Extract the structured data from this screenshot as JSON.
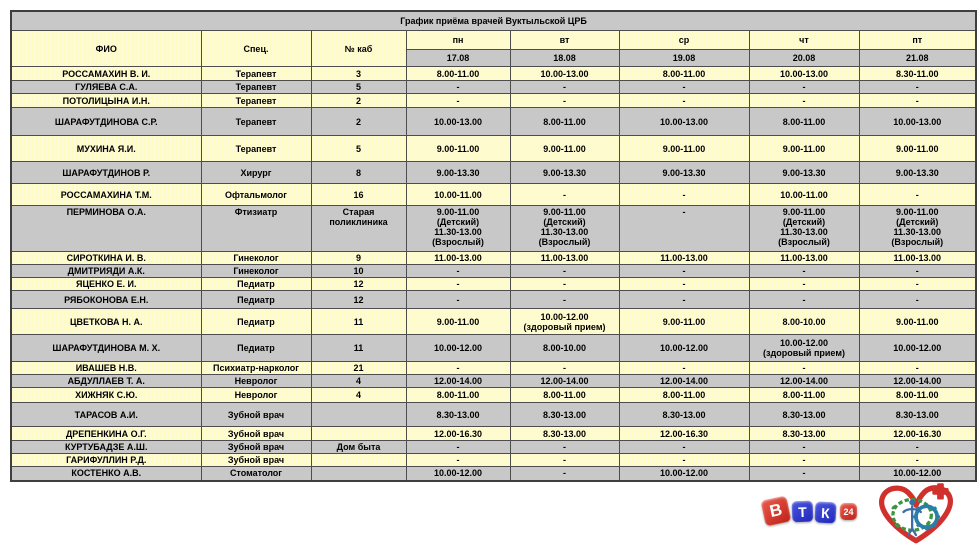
{
  "page": {
    "title_row": "График приёма врачей Вуктыльской ЦРБ"
  },
  "table": {
    "headers": {
      "fio": "ФИО",
      "spec": "Спец.",
      "room": "№ каб"
    },
    "days": [
      "пн",
      "вт",
      "ср",
      "чт",
      "пт"
    ],
    "dates": [
      "17.08",
      "18.08",
      "19.08",
      "20.08",
      "21.08"
    ],
    "rows": [
      {
        "name": "РОССАМАХИН В. И.",
        "spec": "Терапевт",
        "room": "3",
        "times": [
          "8.00-11.00",
          "10.00-13.00",
          "8.00-11.00",
          "10.00-13.00",
          "8.30-11.00"
        ]
      },
      {
        "name": "ГУЛЯЕВА С.А.",
        "spec": "Терапевт",
        "room": "5",
        "times": [
          "-",
          "-",
          "-",
          "-",
          "-"
        ]
      },
      {
        "name": "ПОТОЛИЦЫНА И.Н.",
        "spec": "Терапевт",
        "room": "2",
        "times": [
          "-",
          "-",
          "-",
          "-",
          "-"
        ]
      },
      {
        "name": "ШАРАФУТДИНОВА С.Р.",
        "spec": "Терапевт",
        "room": "2",
        "times": [
          "10.00-13.00",
          "8.00-11.00",
          "10.00-13.00",
          "8.00-11.00",
          "10.00-13.00"
        ]
      },
      {
        "name": "МУХИНА Я.И.",
        "spec": "Терапевт",
        "room": "5",
        "times": [
          "9.00-11.00",
          "9.00-11.00",
          "9.00-11.00",
          "9.00-11.00",
          "9.00-11.00"
        ]
      },
      {
        "name": "ШАРАФУТДИНОВ Р.",
        "spec": "Хирург",
        "room": "8",
        "times": [
          "9.00-13.30",
          "9.00-13.30",
          "9.00-13.30",
          "9.00-13.30",
          "9.00-13.30"
        ]
      },
      {
        "name": "РОССАМАХИНА Т.М.",
        "spec": "Офтальмолог",
        "room": "16",
        "times": [
          "10.00-11.00",
          "-",
          "-",
          "10.00-11.00",
          "-"
        ]
      },
      {
        "name": "ПЕРМИНОВА О.А.",
        "spec": "Фтизиатр",
        "room": "Старая\nполиклиника",
        "times": [
          "9.00-11.00\n(Детский)\n11.30-13.00\n(Взрослый)",
          "9.00-11.00\n(Детский)\n11.30-13.00\n(Взрослый)",
          "-",
          "9.00-11.00\n(Детский)\n11.30-13.00\n(Взрослый)",
          "9.00-11.00\n(Детский)\n11.30-13.00\n(Взрослый)"
        ]
      },
      {
        "name": "СИРОТКИНА И. В.",
        "spec": "Гинеколог",
        "room": "9",
        "times": [
          "11.00-13.00",
          "11.00-13.00",
          "11.00-13.00",
          "11.00-13.00",
          "11.00-13.00"
        ]
      },
      {
        "name": "ДМИТРИЯДИ А.К.",
        "spec": "Гинеколог",
        "room": "10",
        "times": [
          "-",
          "-",
          "-",
          "-",
          "-"
        ]
      },
      {
        "name": "ЯЦЕНКО Е. И.",
        "spec": "Педиатр",
        "room": "12",
        "times": [
          "-",
          "-",
          "-",
          "-",
          "-"
        ]
      },
      {
        "name": "РЯБОКОНОВА Е.Н.",
        "spec": "Педиатр",
        "room": "12",
        "times": [
          "-",
          "-",
          "-",
          "-",
          "-"
        ]
      },
      {
        "name": "ЦВЕТКОВА Н. А.",
        "spec": "Педиатр",
        "room": "11",
        "times": [
          "9.00-11.00",
          "10.00-12.00\n(здоровый прием)",
          "9.00-11.00",
          "8.00-10.00",
          "9.00-11.00"
        ]
      },
      {
        "name": "ШАРАФУТДИНОВА М. Х.",
        "spec": "Педиатр",
        "room": "11",
        "times": [
          "10.00-12.00",
          "8.00-10.00",
          "10.00-12.00",
          "10.00-12.00\n(здоровый прием)",
          "10.00-12.00"
        ]
      },
      {
        "name": "ИВАШЕВ Н.В.",
        "spec": "Психиатр-нарколог",
        "room": "21",
        "times": [
          "-",
          "-",
          "-",
          "-",
          "-"
        ]
      },
      {
        "name": "АБДУЛЛАЕВ Т. А.",
        "spec": "Невролог",
        "room": "4",
        "times": [
          "12.00-14.00",
          "12.00-14.00",
          "12.00-14.00",
          "12.00-14.00",
          "12.00-14.00"
        ]
      },
      {
        "name": "ХИЖНЯК С.Ю.",
        "spec": "Невролог",
        "room": "4",
        "times": [
          "8.00-11.00",
          "8.00-11.00",
          "8.00-11.00",
          "8.00-11.00",
          "8.00-11.00"
        ]
      },
      {
        "name": "ТАРАСОВ А.И.",
        "spec": "Зубной врач",
        "room": "",
        "times": [
          "8.30-13.00",
          "8.30-13.00",
          "8.30-13.00",
          "8.30-13.00",
          "8.30-13.00"
        ]
      },
      {
        "name": "ДРЕПЕНКИНА О.Г.",
        "spec": "Зубной врач",
        "room": "",
        "times": [
          "12.00-16.30",
          "8.30-13.00",
          "12.00-16.30",
          "8.30-13.00",
          "12.00-16.30"
        ]
      },
      {
        "name": "КУРТУБАДЗЕ А.Ш.",
        "spec": "Зубной врач",
        "room": "Дом быта",
        "times": [
          "-",
          "-",
          "-",
          "-",
          "-"
        ]
      },
      {
        "name": "ГАРИФУЛЛИН Р.Д.",
        "spec": "Зубной врач",
        "room": "",
        "times": [
          "-",
          "-",
          "-",
          "-",
          "-"
        ]
      },
      {
        "name": "КОСТЕНКО А.В.",
        "spec": "Стоматолог",
        "room": "",
        "times": [
          "10.00-12.00",
          "-",
          "10.00-12.00",
          "-",
          "10.00-12.00"
        ]
      }
    ]
  },
  "logos": {
    "btk": {
      "tile_b": "В",
      "tile_t": "Т",
      "tile_k": "К",
      "badge": "24"
    },
    "icons": {
      "btk_logo": "btk24-tv-logo",
      "heart_logo": "hospital-heart-logo"
    }
  }
}
